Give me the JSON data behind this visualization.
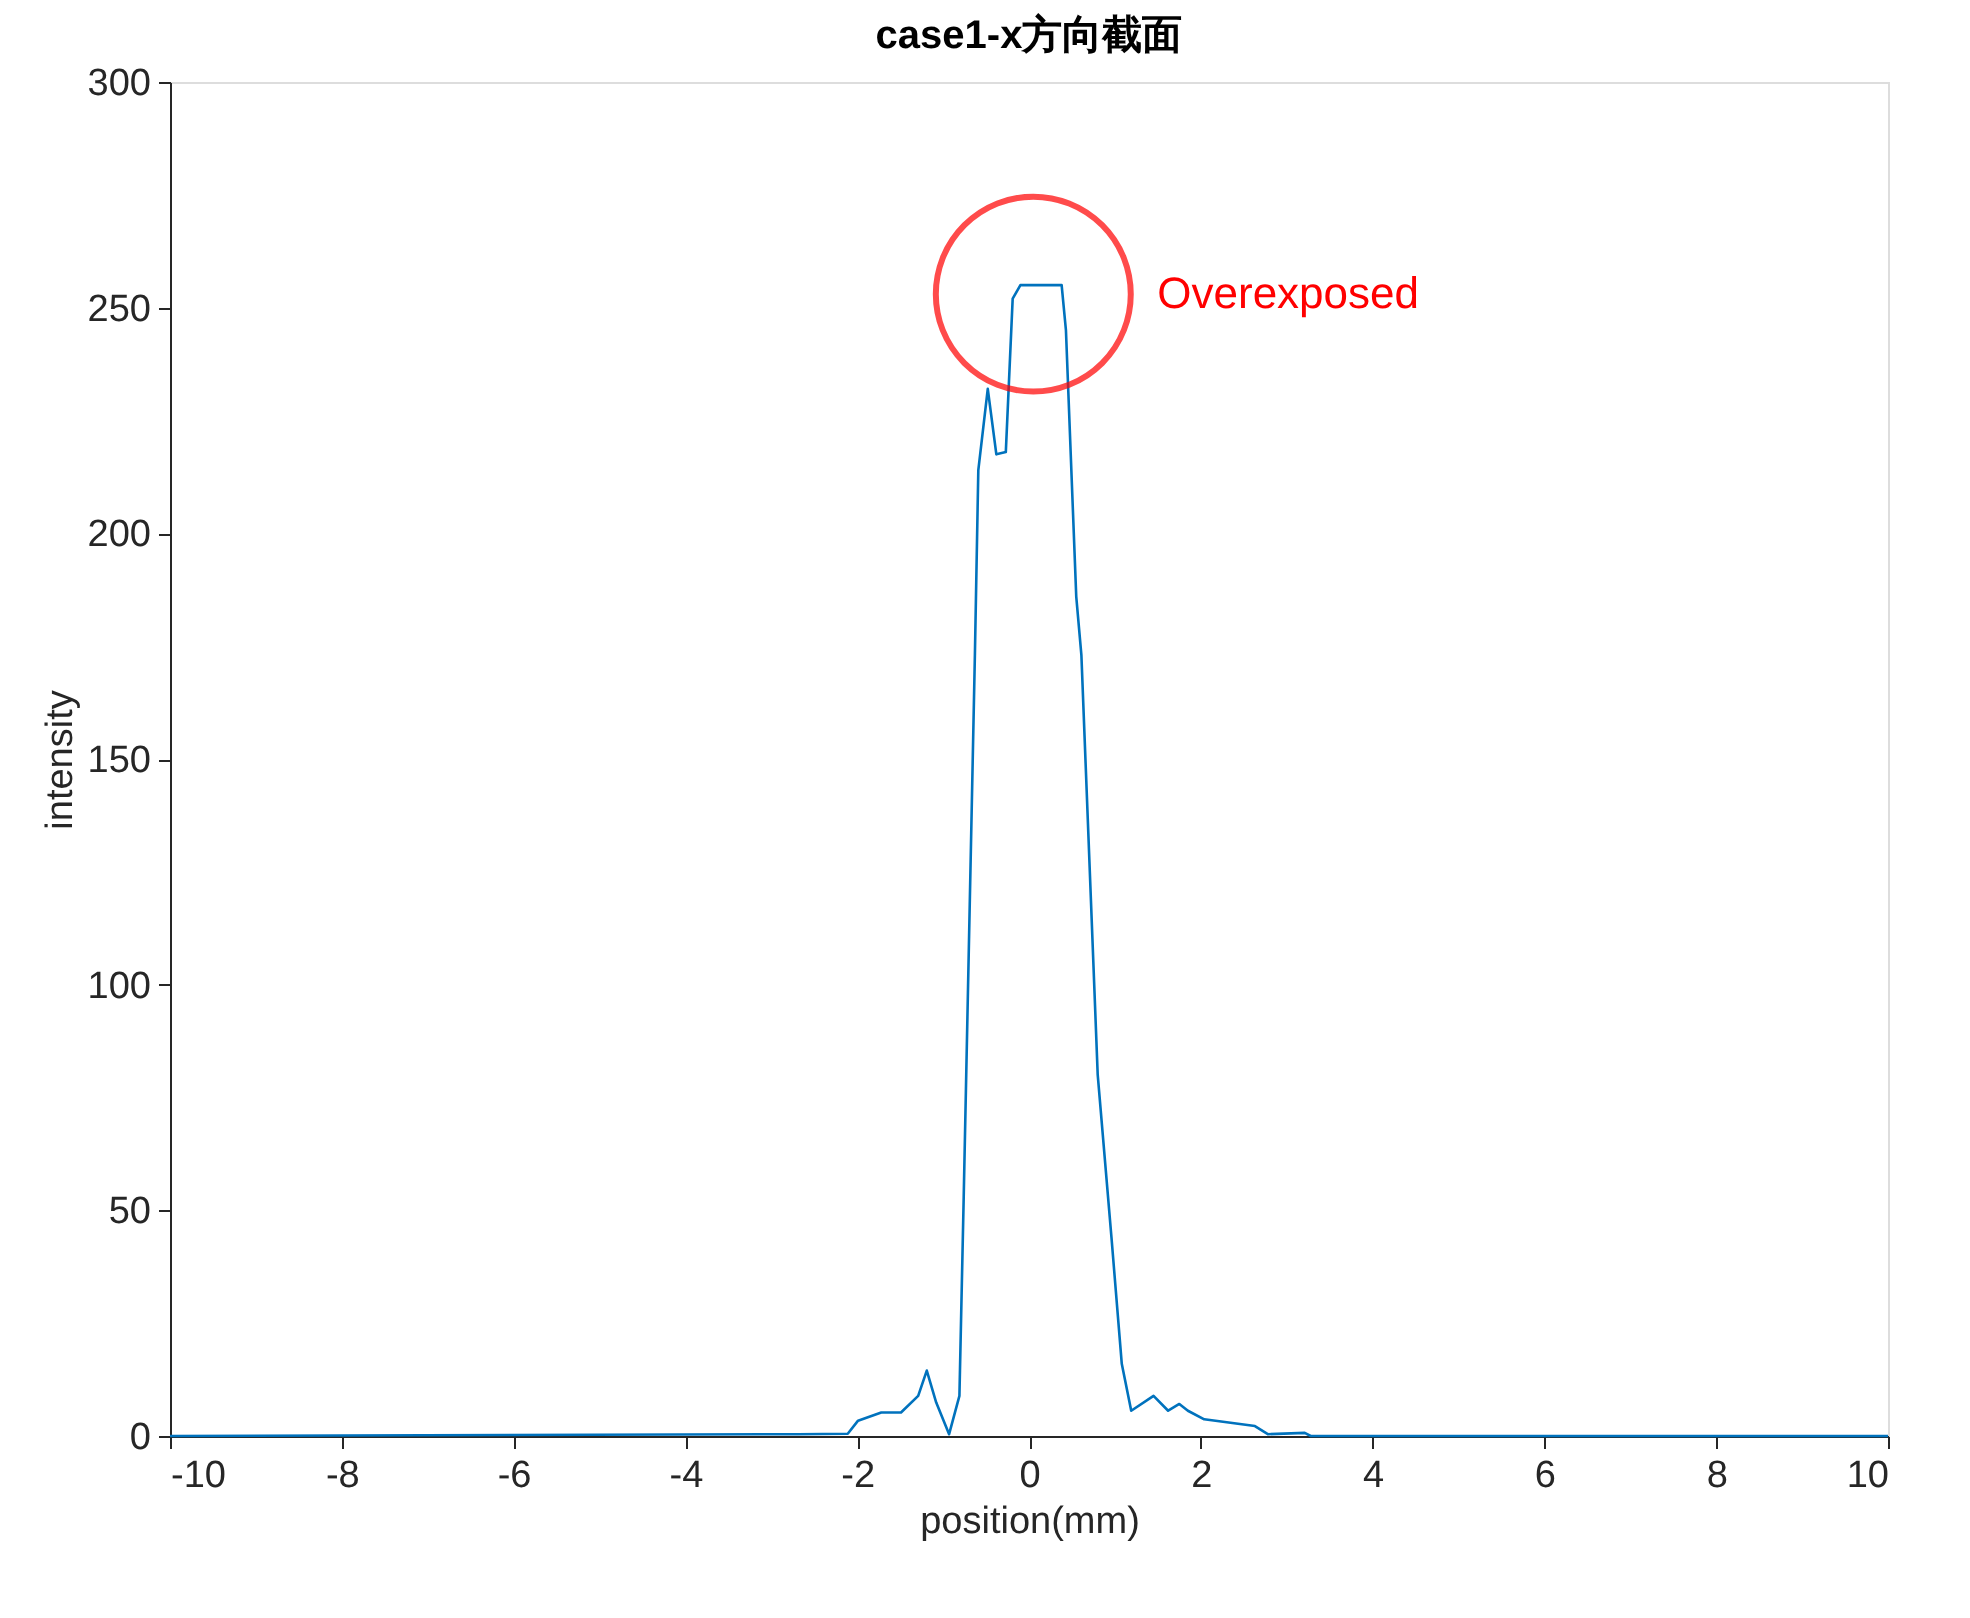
{
  "chart_data": {
    "type": "line",
    "title": "case1-x方向截面",
    "xlabel": "position(mm)",
    "ylabel": "intensity",
    "x": [
      -10,
      -2.69,
      -2.11,
      -1.99,
      -1.72,
      -1.49,
      -1.29,
      -1.19,
      -1.08,
      -0.93,
      -0.81,
      -0.76,
      -0.63,
      -0.59,
      -0.48,
      -0.38,
      -0.27,
      -0.19,
      -0.1,
      0.38,
      0.43,
      0.55,
      0.61,
      0.8,
      0.96,
      1.08,
      1.19,
      1.45,
      1.62,
      1.75,
      1.85,
      2.04,
      2.63,
      2.78,
      3.21,
      3.28,
      10
    ],
    "series": [
      {
        "color": "#0072bd",
        "values": [
          0,
          0.4,
          0.5,
          3.4,
          5.2,
          5.2,
          8.9,
          14.5,
          7.4,
          0.4,
          8.9,
          53,
          173,
          214,
          232,
          217.5,
          218,
          252,
          255,
          255,
          245,
          186,
          173,
          80,
          44,
          16,
          5.6,
          8.9,
          5.6,
          7.1,
          5.6,
          3.7,
          2.2,
          0.4,
          0.7,
          0,
          0
        ]
      }
    ],
    "xlim": [
      -10,
      10
    ],
    "xticks": [
      -10,
      -8,
      -6,
      -4,
      -2,
      0,
      2,
      4,
      6,
      8,
      10
    ],
    "ylim": [
      0,
      300
    ],
    "yticks": [
      0,
      50,
      100,
      150,
      200,
      250,
      300
    ],
    "grid": false,
    "marker": "none",
    "line_style": "solid",
    "annotations": [
      {
        "text": "Overexposed",
        "x": 0.05,
        "y": 253
      }
    ]
  }
}
